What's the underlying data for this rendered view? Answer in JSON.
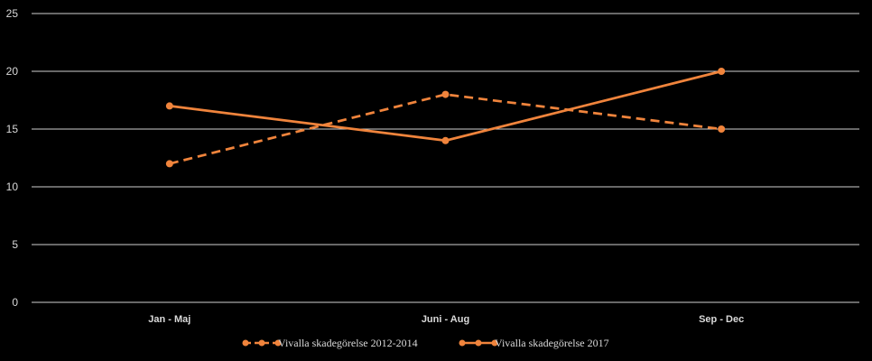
{
  "chart_data": {
    "type": "line",
    "categories": [
      "Jan - Maj",
      "Juni - Aug",
      "Sep - Dec"
    ],
    "series": [
      {
        "name": "Vivalla skadegörelse 2012-2014",
        "values": [
          12,
          18,
          15
        ],
        "color": "#f0843c",
        "style": "dashed"
      },
      {
        "name": "Vivalla skadegörelse 2017",
        "values": [
          17,
          14,
          20
        ],
        "color": "#f0843c",
        "style": "solid"
      }
    ],
    "yticks": [
      0,
      5,
      10,
      15,
      20,
      25
    ],
    "ylim": [
      0,
      25
    ],
    "grid": true,
    "legend": "bottom",
    "background": "#000000"
  }
}
